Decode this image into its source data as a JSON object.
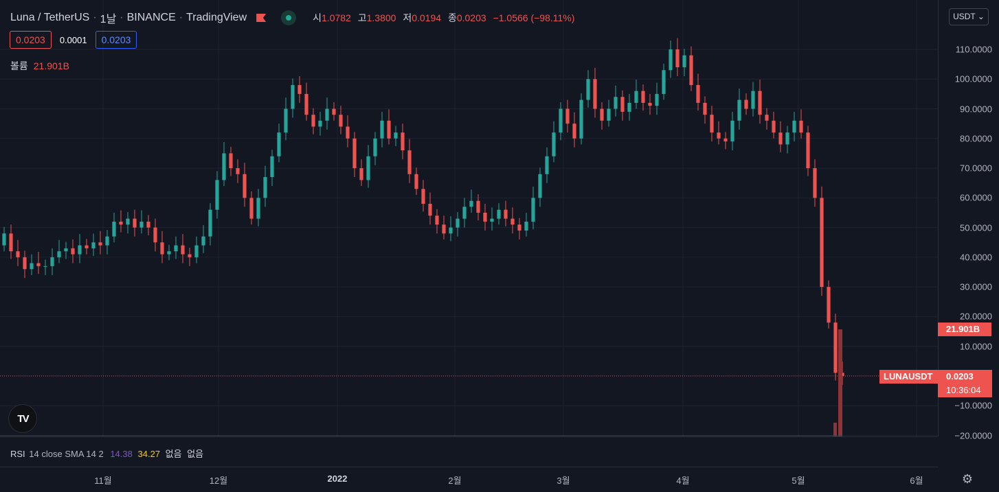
{
  "header": {
    "symbol": "Luna / TetherUS",
    "interval": "1날",
    "exchange": "BINANCE",
    "source": "TradingView",
    "ohlc": {
      "open_label": "시",
      "open": "1.0782",
      "high_label": "고",
      "high": "1.3800",
      "low_label": "저",
      "low": "0.0194",
      "close_label": "종",
      "close": "0.0203",
      "change": "−1.0566 (−98.11%)"
    }
  },
  "quote": {
    "bid": "0.0203",
    "spread": "0.0001",
    "ask": "0.0203"
  },
  "volume_legend": {
    "label": "볼륨",
    "value": "21.901B"
  },
  "currency_button": "USDT",
  "price_axis": {
    "ticks": [
      "110.0000",
      "100.0000",
      "90.0000",
      "80.0000",
      "70.0000",
      "60.0000",
      "50.0000",
      "40.0000",
      "30.0000",
      "20.0000",
      "10.0000",
      "−10.0000",
      "−20.0000"
    ],
    "tick_values": [
      110,
      100,
      90,
      80,
      70,
      60,
      50,
      40,
      30,
      20,
      10,
      -10,
      -20
    ]
  },
  "tags": {
    "volume": "21.901B",
    "symbol": "LUNAUSDT",
    "price": "0.0203",
    "countdown": "10:36:04"
  },
  "time_axis": [
    "11월",
    "12월",
    "2022",
    "2월",
    "3월",
    "4월",
    "5월",
    "6월"
  ],
  "rsi_legend": {
    "name": "RSI",
    "params": "14 close SMA 14 2",
    "value1": "14.38",
    "value2": "34.27",
    "extra1": "없음",
    "extra2": "없음"
  },
  "logo_text": "TV",
  "colors": {
    "up": "#26a69a",
    "down": "#ef5350",
    "background": "#131722",
    "grid": "#1f2330"
  },
  "chart_data": {
    "type": "candlestick",
    "symbol": "LUNAUSDT",
    "x_ticks": [
      "11월",
      "12월",
      "2022",
      "2월",
      "3월",
      "4월",
      "5월",
      "6월"
    ],
    "ylim": [
      -20,
      117
    ],
    "series_points": [
      [
        44,
        48
      ],
      [
        48,
        42
      ],
      [
        42,
        40
      ],
      [
        40,
        36
      ],
      [
        36,
        38
      ],
      [
        38,
        37
      ],
      [
        37,
        37
      ],
      [
        37,
        40
      ],
      [
        40,
        42
      ],
      [
        42,
        43
      ],
      [
        43,
        41
      ],
      [
        41,
        44
      ],
      [
        44,
        43
      ],
      [
        43,
        45
      ],
      [
        45,
        44
      ],
      [
        44,
        47
      ],
      [
        47,
        52
      ],
      [
        52,
        51
      ],
      [
        51,
        53
      ],
      [
        53,
        50
      ],
      [
        50,
        52
      ],
      [
        52,
        50
      ],
      [
        50,
        45
      ],
      [
        45,
        41
      ],
      [
        41,
        42
      ],
      [
        42,
        44
      ],
      [
        44,
        41
      ],
      [
        41,
        40
      ],
      [
        40,
        44
      ],
      [
        44,
        47
      ],
      [
        47,
        56
      ],
      [
        56,
        66
      ],
      [
        66,
        75
      ],
      [
        75,
        70
      ],
      [
        70,
        68
      ],
      [
        68,
        60
      ],
      [
        60,
        53
      ],
      [
        53,
        60
      ],
      [
        60,
        67
      ],
      [
        67,
        74
      ],
      [
        74,
        82
      ],
      [
        82,
        90
      ],
      [
        90,
        98
      ],
      [
        98,
        95
      ],
      [
        95,
        88
      ],
      [
        88,
        84
      ],
      [
        84,
        86
      ],
      [
        86,
        90
      ],
      [
        90,
        88
      ],
      [
        88,
        84
      ],
      [
        84,
        80
      ],
      [
        80,
        70
      ],
      [
        70,
        66
      ],
      [
        66,
        74
      ],
      [
        74,
        80
      ],
      [
        80,
        86
      ],
      [
        86,
        80
      ],
      [
        80,
        82
      ],
      [
        82,
        76
      ],
      [
        76,
        68
      ],
      [
        68,
        63
      ],
      [
        63,
        58
      ],
      [
        58,
        54
      ],
      [
        54,
        51
      ],
      [
        51,
        48
      ],
      [
        48,
        50
      ],
      [
        50,
        53
      ],
      [
        53,
        57
      ],
      [
        57,
        59
      ],
      [
        59,
        55
      ],
      [
        55,
        52
      ],
      [
        52,
        53
      ],
      [
        53,
        56
      ],
      [
        56,
        53
      ],
      [
        53,
        51
      ],
      [
        51,
        49
      ],
      [
        49,
        52
      ],
      [
        52,
        60
      ],
      [
        60,
        68
      ],
      [
        68,
        74
      ],
      [
        74,
        82
      ],
      [
        82,
        90
      ],
      [
        90,
        85
      ],
      [
        85,
        80
      ],
      [
        80,
        93
      ],
      [
        93,
        100
      ],
      [
        100,
        90
      ],
      [
        90,
        86
      ],
      [
        86,
        90
      ],
      [
        90,
        94
      ],
      [
        94,
        89
      ],
      [
        89,
        92
      ],
      [
        92,
        96
      ],
      [
        96,
        92
      ],
      [
        92,
        91
      ],
      [
        91,
        95
      ],
      [
        95,
        103
      ],
      [
        103,
        110
      ],
      [
        110,
        104
      ],
      [
        104,
        108
      ],
      [
        108,
        98
      ],
      [
        98,
        92
      ],
      [
        92,
        88
      ],
      [
        88,
        82
      ],
      [
        82,
        80
      ],
      [
        80,
        79
      ],
      [
        79,
        86
      ],
      [
        86,
        93
      ],
      [
        93,
        90
      ],
      [
        90,
        96
      ],
      [
        96,
        88
      ],
      [
        88,
        86
      ],
      [
        86,
        82
      ],
      [
        82,
        78
      ],
      [
        78,
        82
      ],
      [
        82,
        86
      ],
      [
        86,
        82
      ],
      [
        82,
        70
      ],
      [
        70,
        60
      ],
      [
        60,
        30
      ],
      [
        30,
        18
      ],
      [
        18,
        1.08
      ],
      [
        1.08,
        0.0203
      ]
    ],
    "last_price": 0.0203,
    "last_volume": "21.901B"
  }
}
